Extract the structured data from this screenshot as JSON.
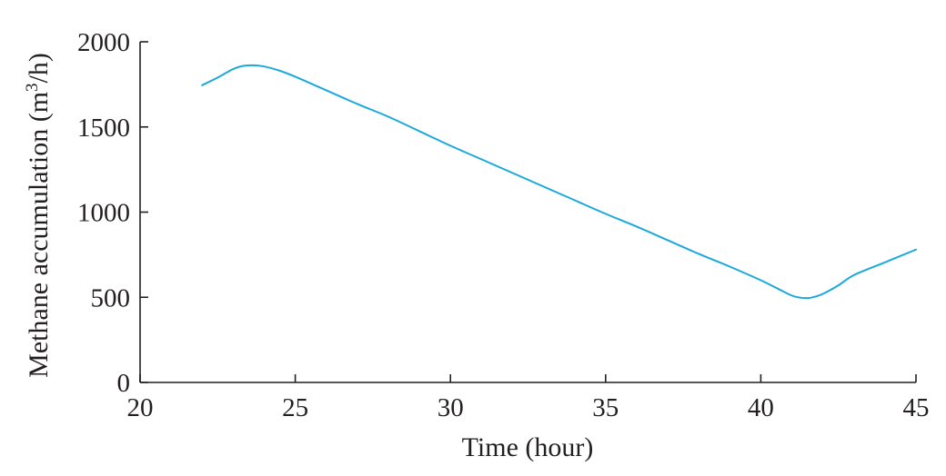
{
  "chart_data": {
    "type": "line",
    "title": "",
    "xlabel": "Time (hour)",
    "ylabel": "Methane accumulation (m3/h)",
    "ylabel_parts": {
      "before": "Methane accumulation (m",
      "sup": "3",
      "after": "/h)"
    },
    "xlim": [
      20,
      45
    ],
    "ylim": [
      0,
      2000
    ],
    "xticks": [
      20,
      25,
      30,
      35,
      40,
      45
    ],
    "yticks": [
      0,
      500,
      1000,
      1500,
      2000
    ],
    "grid": false,
    "legend": "none",
    "series": [
      {
        "color": "#1ba9dc",
        "x": [
          22,
          22.5,
          23,
          23.3,
          23.6,
          24,
          24.5,
          25,
          26,
          27,
          28,
          29,
          30,
          31,
          32,
          33,
          34,
          35,
          36,
          37,
          38,
          39,
          40,
          40.5,
          41,
          41.3,
          41.6,
          42,
          42.5,
          43,
          44,
          45
        ],
        "y": [
          1745,
          1790,
          1840,
          1858,
          1862,
          1855,
          1830,
          1795,
          1715,
          1635,
          1560,
          1475,
          1390,
          1310,
          1230,
          1150,
          1070,
          990,
          915,
          835,
          755,
          680,
          600,
          555,
          510,
          497,
          497,
          520,
          570,
          630,
          705,
          780
        ]
      }
    ]
  }
}
